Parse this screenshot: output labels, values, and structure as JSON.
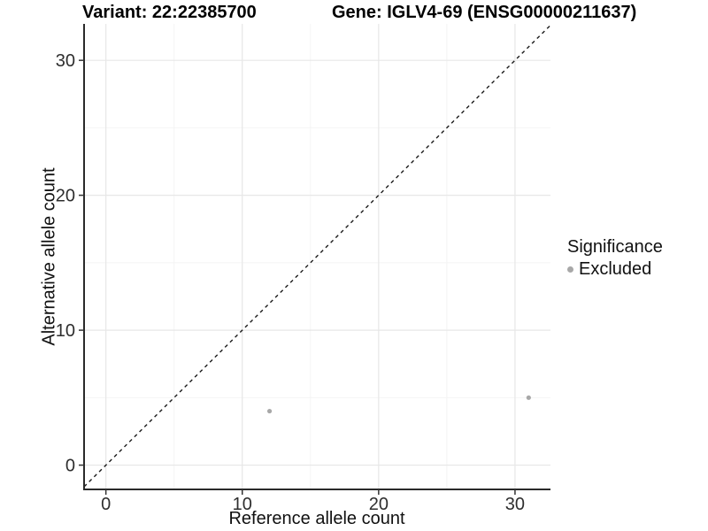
{
  "titles": {
    "variant": "Variant: 22:22385700",
    "gene": "Gene: IGLV4-69 (ENSG00000211637)"
  },
  "legend": {
    "title": "Significance",
    "items": [
      {
        "label": "Excluded",
        "color": "#a8a8a8"
      }
    ]
  },
  "chart_data": {
    "type": "scatter",
    "title_left": "Variant: 22:22385700",
    "title_right": "Gene: IGLV4-69 (ENSG00000211637)",
    "xlabel": "Reference allele count",
    "ylabel": "Alternative allele count",
    "series": [
      {
        "name": "Excluded",
        "points": [
          {
            "x": 12,
            "y": 4
          },
          {
            "x": 31,
            "y": 5
          }
        ]
      }
    ],
    "xlim": [
      -1.6,
      32.6
    ],
    "ylim": [
      -1.8,
      32.7
    ],
    "xticks": [
      0,
      10,
      20,
      30
    ],
    "yticks": [
      0,
      10,
      20,
      30
    ],
    "x_minor_ticks": [
      5,
      15,
      25
    ],
    "y_minor_ticks": [
      5,
      15,
      25
    ],
    "identity_line": {
      "type": "dashed",
      "equation": "y = x"
    },
    "grid": "major and minor, light gray",
    "legend_position": "right",
    "colors": {
      "point": "#a8a8a8",
      "grid_major": "#e7e7e7",
      "grid_minor": "#f4f4f4",
      "axis_line": "#2a2a2a",
      "tick_mark": "#333333",
      "identity_line": "#1a1a1a"
    }
  }
}
